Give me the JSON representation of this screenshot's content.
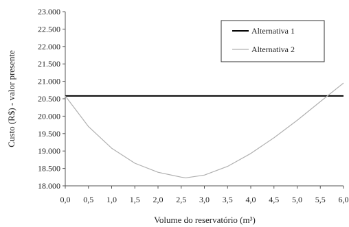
{
  "chart_data": {
    "type": "line",
    "xlabel": "Volume do reservatório (m³)",
    "ylabel": "Custo (R$) - valor presente",
    "xlim": [
      0,
      6
    ],
    "ylim": [
      18000,
      23000
    ],
    "x_ticks": [
      "0,0",
      "0,5",
      "1,0",
      "1,5",
      "2,0",
      "2,5",
      "3,0",
      "3,5",
      "4,0",
      "4,5",
      "5,0",
      "5,5",
      "6,0"
    ],
    "y_ticks": [
      "18.000",
      "18.500",
      "19.000",
      "19.500",
      "20.000",
      "20.500",
      "21.000",
      "21.500",
      "22.000",
      "22.500",
      "23.000"
    ],
    "grid": false,
    "legend_position": "top-right",
    "series": [
      {
        "name": "Alternativa 1",
        "color": "#000000",
        "x": [
          0,
          6
        ],
        "values": [
          20580,
          20580
        ]
      },
      {
        "name": "Alternativa 2",
        "color": "#b0b0b0",
        "x": [
          0,
          0.5,
          1.0,
          1.5,
          2.0,
          2.5,
          2.6,
          3.0,
          3.5,
          4.0,
          4.5,
          5.0,
          5.5,
          6.0
        ],
        "values": [
          20580,
          19700,
          19080,
          18650,
          18390,
          18250,
          18230,
          18310,
          18560,
          18930,
          19380,
          19880,
          20420,
          20950
        ]
      }
    ]
  }
}
